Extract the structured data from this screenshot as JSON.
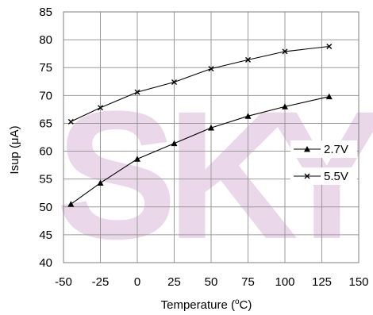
{
  "chart_data": {
    "type": "line",
    "title": "",
    "xlabel": "Temperature  (",
    "xlabel_sup": "o",
    "xlabel_tail": "C)",
    "ylabel": "Isup (μA)",
    "xlim": [
      -50,
      150
    ],
    "ylim": [
      40,
      85
    ],
    "xticks": [
      -50,
      -25,
      0,
      25,
      50,
      75,
      100,
      125,
      150
    ],
    "xtick_labels": [
      "-50",
      "-25",
      "0",
      "25",
      "50",
      "75",
      "100",
      "125",
      "150"
    ],
    "yticks": [
      40,
      45,
      50,
      55,
      60,
      65,
      70,
      75,
      80,
      85
    ],
    "ytick_labels": [
      "40",
      "45",
      "50",
      "55",
      "60",
      "65",
      "70",
      "75",
      "80",
      "85"
    ],
    "grid": true,
    "legend_position": "right",
    "watermark": "SKY",
    "series": [
      {
        "name": "2.7V",
        "marker": "triangle",
        "color": "#000000",
        "x": [
          -45,
          -25,
          0,
          25,
          50,
          75,
          100,
          130
        ],
        "y": [
          50.5,
          54.3,
          58.6,
          61.4,
          64.2,
          66.3,
          68.0,
          69.8
        ]
      },
      {
        "name": "5.5V",
        "marker": "x",
        "color": "#000000",
        "x": [
          -45,
          -25,
          0,
          25,
          50,
          75,
          100,
          130
        ],
        "y": [
          65.3,
          67.8,
          70.6,
          72.4,
          74.8,
          76.4,
          77.9,
          78.8
        ]
      }
    ]
  }
}
